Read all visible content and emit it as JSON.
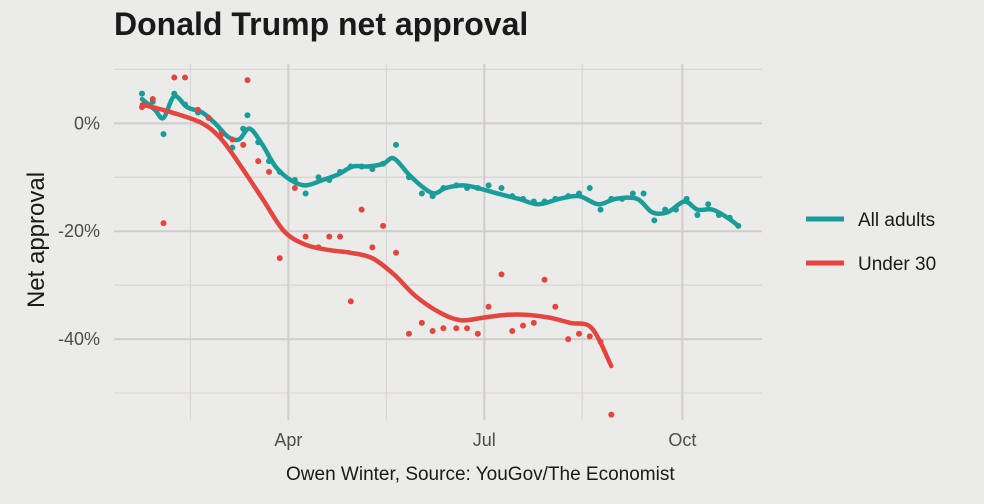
{
  "chart_data": {
    "type": "line",
    "title": "Donald Trump net approval",
    "caption": "Owen Winter, Source: YouGov/The Economist",
    "ylabel": "Net approval",
    "xlabel": "",
    "x_ticks": [
      {
        "label": "Apr",
        "date": "2025-04-01"
      },
      {
        "label": "Jul",
        "date": "2025-07-01"
      },
      {
        "label": "Oct",
        "date": "2025-10-01"
      }
    ],
    "y_ticks": [
      {
        "label": "0%",
        "value": 0
      },
      {
        "label": "-20%",
        "value": -20
      },
      {
        "label": "-40%",
        "value": -40
      }
    ],
    "xlim": [
      "2025-01-10",
      "2025-11-07"
    ],
    "ylim": [
      -55,
      11
    ],
    "grid": true,
    "legend_position": "right",
    "series": [
      {
        "name": "All adults",
        "color": "#1a9c9a",
        "points": [
          [
            "2025-01-23",
            5.5
          ],
          [
            "2025-01-28",
            4
          ],
          [
            "2025-02-02",
            -2
          ],
          [
            "2025-02-07",
            5.5
          ],
          [
            "2025-02-12",
            3.5
          ],
          [
            "2025-02-18",
            2
          ],
          [
            "2025-02-23",
            1
          ],
          [
            "2025-03-01",
            -1.5
          ],
          [
            "2025-03-06",
            -4.5
          ],
          [
            "2025-03-11",
            -1
          ],
          [
            "2025-03-13",
            1.5
          ],
          [
            "2025-03-18",
            -3.5
          ],
          [
            "2025-03-23",
            -7
          ],
          [
            "2025-03-28",
            -9
          ],
          [
            "2025-04-04",
            -10.5
          ],
          [
            "2025-04-09",
            -13
          ],
          [
            "2025-04-15",
            -10
          ],
          [
            "2025-04-20",
            -10.5
          ],
          [
            "2025-04-25",
            -9
          ],
          [
            "2025-04-30",
            -8
          ],
          [
            "2025-05-05",
            -8
          ],
          [
            "2025-05-10",
            -8.5
          ],
          [
            "2025-05-15",
            -7.5
          ],
          [
            "2025-05-21",
            -4
          ],
          [
            "2025-05-27",
            -10
          ],
          [
            "2025-06-02",
            -13
          ],
          [
            "2025-06-07",
            -13.5
          ],
          [
            "2025-06-12",
            -12
          ],
          [
            "2025-06-18",
            -11.5
          ],
          [
            "2025-06-23",
            -12
          ],
          [
            "2025-06-28",
            -12
          ],
          [
            "2025-07-03",
            -11.5
          ],
          [
            "2025-07-09",
            -12
          ],
          [
            "2025-07-14",
            -13.5
          ],
          [
            "2025-07-19",
            -14
          ],
          [
            "2025-07-24",
            -14.5
          ],
          [
            "2025-07-29",
            -14.5
          ],
          [
            "2025-08-03",
            -14
          ],
          [
            "2025-08-09",
            -13.5
          ],
          [
            "2025-08-14",
            -13
          ],
          [
            "2025-08-19",
            -12
          ],
          [
            "2025-08-24",
            -16
          ],
          [
            "2025-08-29",
            -14
          ],
          [
            "2025-09-03",
            -14
          ],
          [
            "2025-09-08",
            -13
          ],
          [
            "2025-09-13",
            -13
          ],
          [
            "2025-09-18",
            -18
          ],
          [
            "2025-09-23",
            -16
          ],
          [
            "2025-09-28",
            -16
          ],
          [
            "2025-10-03",
            -14
          ],
          [
            "2025-10-08",
            -17
          ],
          [
            "2025-10-13",
            -15
          ],
          [
            "2025-10-18",
            -17
          ],
          [
            "2025-10-23",
            -17.5
          ],
          [
            "2025-10-27",
            -19
          ]
        ],
        "trend": [
          [
            "2025-01-23",
            4.5
          ],
          [
            "2025-01-29",
            2.5
          ],
          [
            "2025-02-02",
            1
          ],
          [
            "2025-02-07",
            5
          ],
          [
            "2025-02-13",
            3
          ],
          [
            "2025-02-20",
            2
          ],
          [
            "2025-02-26",
            0
          ],
          [
            "2025-03-04",
            -2.5
          ],
          [
            "2025-03-09",
            -3
          ],
          [
            "2025-03-14",
            -1
          ],
          [
            "2025-03-20",
            -4
          ],
          [
            "2025-03-26",
            -8
          ],
          [
            "2025-04-02",
            -10.5
          ],
          [
            "2025-04-09",
            -11.5
          ],
          [
            "2025-04-17",
            -10.5
          ],
          [
            "2025-04-24",
            -9.5
          ],
          [
            "2025-05-01",
            -8
          ],
          [
            "2025-05-08",
            -8
          ],
          [
            "2025-05-15",
            -7.5
          ],
          [
            "2025-05-20",
            -6.5
          ],
          [
            "2025-05-27",
            -9.5
          ],
          [
            "2025-06-03",
            -12
          ],
          [
            "2025-06-08",
            -13
          ],
          [
            "2025-06-13",
            -12
          ],
          [
            "2025-06-21",
            -11.5
          ],
          [
            "2025-06-28",
            -12
          ],
          [
            "2025-07-07",
            -13
          ],
          [
            "2025-07-17",
            -14
          ],
          [
            "2025-07-26",
            -15
          ],
          [
            "2025-08-05",
            -14
          ],
          [
            "2025-08-14",
            -13.5
          ],
          [
            "2025-08-23",
            -15
          ],
          [
            "2025-08-31",
            -14
          ],
          [
            "2025-09-10",
            -14
          ],
          [
            "2025-09-17",
            -16.5
          ],
          [
            "2025-09-24",
            -16.5
          ],
          [
            "2025-10-02",
            -14.5
          ],
          [
            "2025-10-08",
            -16
          ],
          [
            "2025-10-15",
            -16
          ],
          [
            "2025-10-22",
            -17.5
          ],
          [
            "2025-10-27",
            -19
          ]
        ]
      },
      {
        "name": "Under 30",
        "color": "#e2463f",
        "points": [
          [
            "2025-01-23",
            3
          ],
          [
            "2025-01-28",
            4.5
          ],
          [
            "2025-02-02",
            -18.5
          ],
          [
            "2025-02-07",
            8.5
          ],
          [
            "2025-02-12",
            8.5
          ],
          [
            "2025-02-18",
            2.5
          ],
          [
            "2025-02-23",
            1
          ],
          [
            "2025-03-01",
            -2
          ],
          [
            "2025-03-06",
            -3
          ],
          [
            "2025-03-11",
            -4
          ],
          [
            "2025-03-13",
            8
          ],
          [
            "2025-03-18",
            -7
          ],
          [
            "2025-03-23",
            -9
          ],
          [
            "2025-03-28",
            -25
          ],
          [
            "2025-04-04",
            -12
          ],
          [
            "2025-04-09",
            -21
          ],
          [
            "2025-04-15",
            -23
          ],
          [
            "2025-04-20",
            -21
          ],
          [
            "2025-04-25",
            -21
          ],
          [
            "2025-04-30",
            -33
          ],
          [
            "2025-05-05",
            -16
          ],
          [
            "2025-05-10",
            -23
          ],
          [
            "2025-05-15",
            -19
          ],
          [
            "2025-05-21",
            -24
          ],
          [
            "2025-05-27",
            -39
          ],
          [
            "2025-06-02",
            -37
          ],
          [
            "2025-06-07",
            -38.5
          ],
          [
            "2025-06-12",
            -38
          ],
          [
            "2025-06-18",
            -38
          ],
          [
            "2025-06-23",
            -38
          ],
          [
            "2025-06-28",
            -39
          ],
          [
            "2025-07-03",
            -34
          ],
          [
            "2025-07-09",
            -28
          ],
          [
            "2025-07-14",
            -38.5
          ],
          [
            "2025-07-19",
            -37.5
          ],
          [
            "2025-07-24",
            -37
          ],
          [
            "2025-07-29",
            -29
          ],
          [
            "2025-08-03",
            -34
          ],
          [
            "2025-08-09",
            -40
          ],
          [
            "2025-08-14",
            -39
          ],
          [
            "2025-08-19",
            -39.5
          ],
          [
            "2025-08-24",
            -40.5
          ],
          [
            "2025-08-29",
            -54
          ]
        ],
        "trend": [
          [
            "2025-01-23",
            3.5
          ],
          [
            "2025-02-06",
            2
          ],
          [
            "2025-02-20",
            0
          ],
          [
            "2025-03-01",
            -3
          ],
          [
            "2025-03-10",
            -8
          ],
          [
            "2025-03-20",
            -14
          ],
          [
            "2025-03-30",
            -20
          ],
          [
            "2025-04-09",
            -22.5
          ],
          [
            "2025-04-20",
            -23.5
          ],
          [
            "2025-04-30",
            -24
          ],
          [
            "2025-05-10",
            -25
          ],
          [
            "2025-05-20",
            -28
          ],
          [
            "2025-05-30",
            -32
          ],
          [
            "2025-06-10",
            -35
          ],
          [
            "2025-06-20",
            -36.5
          ],
          [
            "2025-07-01",
            -36
          ],
          [
            "2025-07-11",
            -35.5
          ],
          [
            "2025-07-21",
            -35.5
          ],
          [
            "2025-07-31",
            -36
          ],
          [
            "2025-08-10",
            -37
          ],
          [
            "2025-08-20",
            -38
          ],
          [
            "2025-08-29",
            -45
          ]
        ]
      }
    ]
  }
}
